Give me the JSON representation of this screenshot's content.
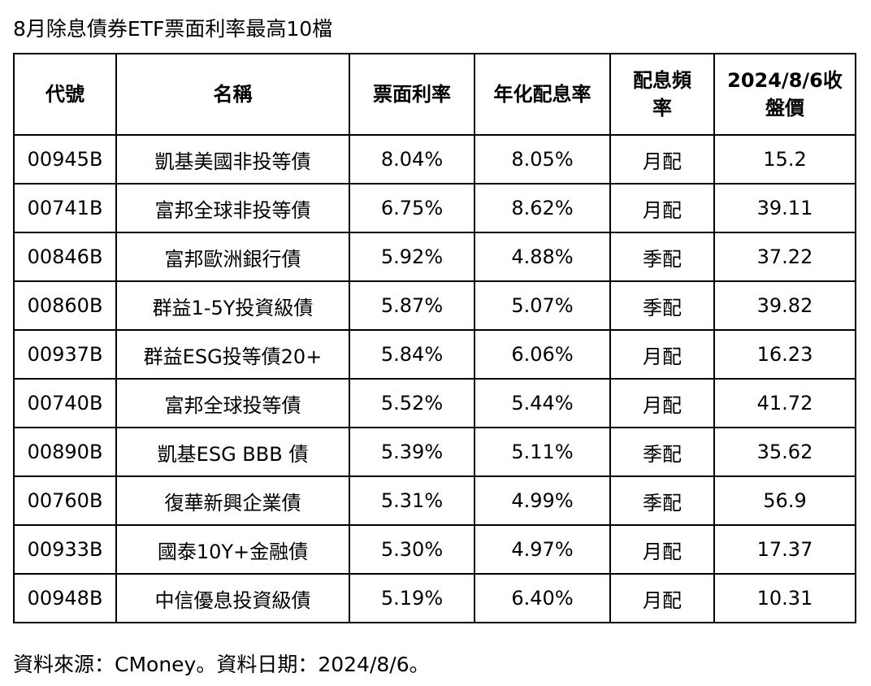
{
  "title": "8月除息債券ETF票面利率最高10檔",
  "table": {
    "headers": [
      "代號",
      "名稱",
      "票面利率",
      "年化配息率",
      "配息頻率",
      "2024/8/6收盤價"
    ],
    "rows": [
      {
        "code": "00945B",
        "name": "凱基美國非投等債",
        "coupon": "8.04%",
        "yield": "8.05%",
        "freq": "月配",
        "price": "15.2"
      },
      {
        "code": "00741B",
        "name": "富邦全球非投等債",
        "coupon": "6.75%",
        "yield": "8.62%",
        "freq": "月配",
        "price": "39.11"
      },
      {
        "code": "00846B",
        "name": "富邦歐洲銀行債",
        "coupon": "5.92%",
        "yield": "4.88%",
        "freq": "季配",
        "price": "37.22"
      },
      {
        "code": "00860B",
        "name": "群益1-5Y投資級債",
        "coupon": "5.87%",
        "yield": "5.07%",
        "freq": "季配",
        "price": "39.82"
      },
      {
        "code": "00937B",
        "name": "群益ESG投等債20+",
        "coupon": "5.84%",
        "yield": "6.06%",
        "freq": "月配",
        "price": "16.23"
      },
      {
        "code": "00740B",
        "name": "富邦全球投等債",
        "coupon": "5.52%",
        "yield": "5.44%",
        "freq": "月配",
        "price": "41.72"
      },
      {
        "code": "00890B",
        "name": "凱基ESG BBB 債",
        "coupon": "5.39%",
        "yield": "5.11%",
        "freq": "季配",
        "price": "35.62"
      },
      {
        "code": "00760B",
        "name": "復華新興企業債",
        "coupon": "5.31%",
        "yield": "4.99%",
        "freq": "季配",
        "price": "56.9"
      },
      {
        "code": "00933B",
        "name": "國泰10Y+金融債",
        "coupon": "5.30%",
        "yield": "4.97%",
        "freq": "月配",
        "price": "17.37"
      },
      {
        "code": "00948B",
        "name": "中信優息投資級債",
        "coupon": "5.19%",
        "yield": "6.40%",
        "freq": "月配",
        "price": "10.31"
      }
    ]
  },
  "footer": "資料來源：CMoney。資料日期：2024/8/6。"
}
